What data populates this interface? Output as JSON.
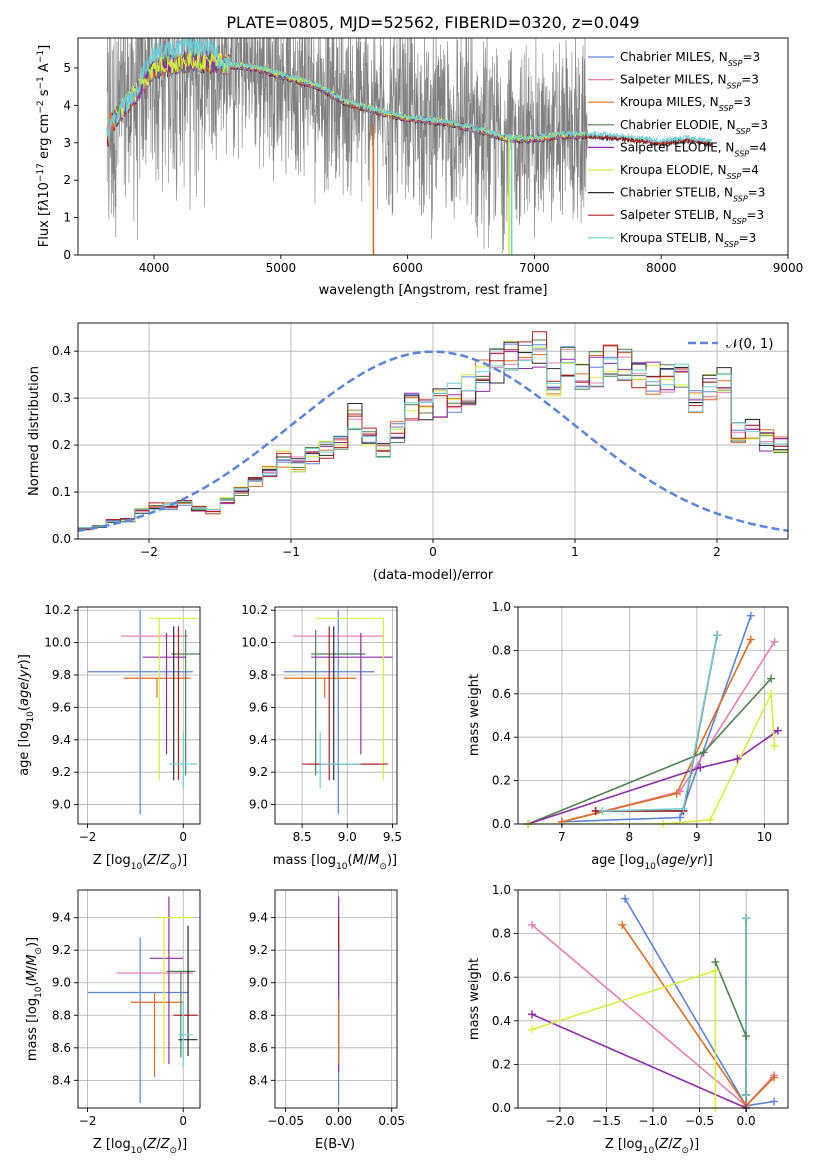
{
  "figure_title": "PLATE=0805, MJD=52562, FIBERID=0320, z=0.049",
  "colors": {
    "Chabrier MILES": "#5b85d9",
    "Salpeter MILES": "#e57fb3",
    "Kroupa MILES": "#dd6f22",
    "Chabrier ELODIE": "#4e8350",
    "Salpeter ELODIE": "#8e2bad",
    "Kroupa ELODIE": "#d6f03f",
    "Chabrier STELIB": "#2a2a2a",
    "Salpeter STELIB": "#b02020",
    "Kroupa STELIB": "#6ecfd6",
    "data": "#7f7f7f",
    "gaussian": "#5b85d9"
  },
  "legend": [
    {
      "name": "Chabrier MILES",
      "pre": "Chabrier MILES, N",
      "sub": "SSP",
      "post": "=3"
    },
    {
      "name": "Salpeter MILES",
      "pre": "Salpeter MILES, N",
      "sub": "SSP",
      "post": "=3"
    },
    {
      "name": "Kroupa MILES",
      "pre": "Kroupa MILES, N",
      "sub": "SSP",
      "post": "=3"
    },
    {
      "name": "Chabrier ELODIE",
      "pre": "Chabrier ELODIE, N",
      "sub": "SSP",
      "post": "=3"
    },
    {
      "name": "Salpeter ELODIE",
      "pre": "Salpeter ELODIE, N",
      "sub": "SSP",
      "post": "=4"
    },
    {
      "name": "Kroupa ELODIE",
      "pre": "Kroupa ELODIE, N",
      "sub": "SSP",
      "post": "=4"
    },
    {
      "name": "Chabrier STELIB",
      "pre": "Chabrier STELIB, N",
      "sub": "SSP",
      "post": "=3"
    },
    {
      "name": "Salpeter STELIB",
      "pre": "Salpeter STELIB, N",
      "sub": "SSP",
      "post": "=3"
    },
    {
      "name": "Kroupa STELIB",
      "pre": "Kroupa STELIB, N",
      "sub": "SSP",
      "post": "=3"
    }
  ],
  "chart_data": [
    {
      "id": "spectrum",
      "type": "line",
      "xlabel": "wavelength [Angstrom, rest frame]",
      "ylabel": "Flux [f_λ 10^-17 erg cm^-2 s^-1 A^-1]",
      "xlim": [
        3400,
        9000
      ],
      "ylim": [
        0,
        5.8
      ],
      "xticks": [
        4000,
        5000,
        6000,
        7000,
        8000,
        9000
      ],
      "yticks": [
        0,
        1,
        2,
        3,
        4,
        5
      ],
      "data_range": [
        3630,
        7420
      ],
      "continuum": [
        [
          3650,
          3.5
        ],
        [
          3900,
          4.5
        ],
        [
          4000,
          5.0
        ],
        [
          4300,
          5.2
        ],
        [
          4800,
          5.0
        ],
        [
          5000,
          4.8
        ],
        [
          5300,
          4.5
        ],
        [
          5500,
          4.1
        ],
        [
          5800,
          3.8
        ],
        [
          6000,
          3.65
        ],
        [
          6300,
          3.55
        ],
        [
          6600,
          3.3
        ],
        [
          6800,
          3.1
        ],
        [
          7000,
          3.1
        ],
        [
          7200,
          3.2
        ],
        [
          7420,
          3.2
        ]
      ],
      "model_extension": [
        [
          7420,
          3.2
        ],
        [
          7700,
          3.15
        ],
        [
          8000,
          3.0
        ],
        [
          8200,
          3.1
        ],
        [
          8400,
          3.0
        ]
      ],
      "grid": false
    },
    {
      "id": "residuals",
      "type": "histogram",
      "xlabel": "(data-model)/error",
      "ylabel": "Normed distribution",
      "xlim": [
        -2.5,
        2.5
      ],
      "ylim": [
        0,
        0.46
      ],
      "xticks": [
        -2,
        -1,
        0,
        1,
        2
      ],
      "yticks": [
        0.0,
        0.1,
        0.2,
        0.3,
        0.4
      ],
      "bin_width": 0.1,
      "reference": {
        "name": "𝒩(0, 1)",
        "mean": 0,
        "sigma": 1
      },
      "base_profile": [
        0.022,
        0.027,
        0.038,
        0.04,
        0.06,
        0.07,
        0.07,
        0.08,
        0.065,
        0.06,
        0.08,
        0.1,
        0.12,
        0.14,
        0.17,
        0.16,
        0.18,
        0.19,
        0.21,
        0.26,
        0.22,
        0.195,
        0.23,
        0.28,
        0.27,
        0.29,
        0.3,
        0.32,
        0.35,
        0.37,
        0.38,
        0.4,
        0.41,
        0.34,
        0.38,
        0.34,
        0.36,
        0.38,
        0.38,
        0.36,
        0.34,
        0.34,
        0.34,
        0.3,
        0.32,
        0.33,
        0.23,
        0.23,
        0.21,
        0.2,
        0.21,
        0.2,
        0.18,
        0.17,
        0.16,
        0.12,
        0.12,
        0.14,
        0.09,
        0.09,
        0.08,
        0.075,
        0.06,
        0.06,
        0.07,
        0.05,
        0.04,
        0.04,
        0.04,
        0.04
      ],
      "grid": true
    },
    {
      "id": "age-vs-z",
      "type": "errorbar",
      "xlabel": "Z [log10(Z/Z⊙)]",
      "ylabel": "age [log10(age/yr)]",
      "xlim": [
        -2.2,
        0.35
      ],
      "ylim": [
        8.88,
        10.22
      ],
      "xticks": [
        -2,
        0
      ],
      "yticks": [
        9.0,
        9.2,
        9.4,
        9.6,
        9.8,
        10.0,
        10.2
      ],
      "points": [
        {
          "series": "Chabrier MILES",
          "x": -0.9,
          "y": 9.82,
          "xerr": [
            1.1,
            1.1
          ],
          "yerr": [
            0.88,
            0.38
          ]
        },
        {
          "series": "Salpeter MILES",
          "x": -0.6,
          "y": 10.04,
          "xerr": [
            0.7,
            0.7
          ],
          "yerr": [
            0.0,
            0.0
          ]
        },
        {
          "series": "Kroupa MILES",
          "x": -0.55,
          "y": 9.78,
          "xerr": [
            0.7,
            0.7
          ],
          "yerr": [
            0.12,
            0.0
          ]
        },
        {
          "series": "Chabrier ELODIE",
          "x": 0.05,
          "y": 9.93,
          "xerr": [
            0.3,
            0.3
          ],
          "yerr": [
            0.75,
            0.15
          ]
        },
        {
          "series": "Salpeter ELODIE",
          "x": -0.35,
          "y": 9.91,
          "xerr": [
            0.5,
            0.4
          ],
          "yerr": [
            0.6,
            0.15
          ]
        },
        {
          "series": "Kroupa ELODIE",
          "x": -0.5,
          "y": 10.15,
          "xerr": [
            0.2,
            0.8
          ],
          "yerr": [
            1.0,
            0.0
          ]
        },
        {
          "series": "Chabrier STELIB",
          "x": -0.2,
          "y": 9.25,
          "xerr": [
            0.0,
            0.0
          ],
          "yerr": [
            0.1,
            0.85
          ]
        },
        {
          "series": "Salpeter STELIB",
          "x": -0.1,
          "y": 9.25,
          "xerr": [
            0.0,
            0.0
          ],
          "yerr": [
            0.1,
            0.85
          ]
        },
        {
          "series": "Kroupa STELIB",
          "x": 0.0,
          "y": 9.25,
          "xerr": [
            0.3,
            0.3
          ],
          "yerr": [
            0.15,
            0.2
          ]
        }
      ],
      "grid": true
    },
    {
      "id": "age-vs-mass",
      "type": "errorbar",
      "xlabel": "mass [log10(M/M⊙)]",
      "ylabel": "",
      "xlim": [
        8.2,
        9.55
      ],
      "ylim": [
        8.88,
        10.22
      ],
      "xticks": [
        8.5,
        9.0,
        9.5
      ],
      "yticks": [
        9.0,
        9.2,
        9.4,
        9.6,
        9.8,
        10.0,
        10.2
      ],
      "points": [
        {
          "series": "Chabrier MILES",
          "x": 8.9,
          "y": 9.82,
          "xerr": [
            0.6,
            0.4
          ],
          "yerr": [
            0.88,
            0.38
          ]
        },
        {
          "series": "Salpeter MILES",
          "x": 9.0,
          "y": 10.04,
          "xerr": [
            0.6,
            0.4
          ],
          "yerr": [
            0.0,
            0.0
          ]
        },
        {
          "series": "Kroupa MILES",
          "x": 8.75,
          "y": 9.78,
          "xerr": [
            0.45,
            0.35
          ],
          "yerr": [
            0.12,
            0.0
          ]
        },
        {
          "series": "Chabrier ELODIE",
          "x": 8.65,
          "y": 9.93,
          "xerr": [
            0.05,
            0.55
          ],
          "yerr": [
            0.75,
            0.15
          ]
        },
        {
          "series": "Salpeter ELODIE",
          "x": 9.15,
          "y": 9.91,
          "xerr": [
            0.55,
            0.35
          ],
          "yerr": [
            0.6,
            0.15
          ]
        },
        {
          "series": "Kroupa ELODIE",
          "x": 9.4,
          "y": 10.15,
          "xerr": [
            0.75,
            0.0
          ],
          "yerr": [
            1.0,
            0.0
          ]
        },
        {
          "series": "Chabrier STELIB",
          "x": 8.85,
          "y": 9.25,
          "xerr": [
            0.3,
            0.5
          ],
          "yerr": [
            0.1,
            0.85
          ]
        },
        {
          "series": "Salpeter STELIB",
          "x": 8.8,
          "y": 9.25,
          "xerr": [
            0.3,
            0.65
          ],
          "yerr": [
            0.1,
            0.85
          ]
        },
        {
          "series": "Kroupa STELIB",
          "x": 8.7,
          "y": 9.25,
          "xerr": [
            0.0,
            0.45
          ],
          "yerr": [
            0.15,
            0.2
          ]
        }
      ],
      "grid": true
    },
    {
      "id": "weight-vs-age",
      "type": "line",
      "xlabel": "age [log10(age/yr)]",
      "ylabel": "mass weight",
      "xlim": [
        6.35,
        10.35
      ],
      "ylim": [
        0.0,
        1.0
      ],
      "xticks": [
        7,
        8,
        9,
        10
      ],
      "yticks": [
        0.0,
        0.2,
        0.4,
        0.6,
        0.8,
        1.0
      ],
      "series": [
        {
          "name": "Chabrier MILES",
          "points": [
            [
              7.0,
              0.01
            ],
            [
              8.75,
              0.03
            ],
            [
              9.8,
              0.96
            ]
          ]
        },
        {
          "name": "Salpeter MILES",
          "points": [
            [
              7.0,
              0.01
            ],
            [
              8.75,
              0.15
            ],
            [
              10.15,
              0.84
            ]
          ]
        },
        {
          "name": "Kroupa MILES",
          "points": [
            [
              7.0,
              0.01
            ],
            [
              8.7,
              0.14
            ],
            [
              9.8,
              0.85
            ]
          ]
        },
        {
          "name": "Chabrier ELODIE",
          "points": [
            [
              6.5,
              0.0
            ],
            [
              9.1,
              0.33
            ],
            [
              10.1,
              0.67
            ]
          ]
        },
        {
          "name": "Salpeter ELODIE",
          "points": [
            [
              6.5,
              0.0
            ],
            [
              9.05,
              0.26
            ],
            [
              9.6,
              0.3
            ],
            [
              10.2,
              0.43
            ]
          ]
        },
        {
          "name": "Kroupa ELODIE",
          "points": [
            [
              6.5,
              0.0
            ],
            [
              8.5,
              0.0
            ],
            [
              9.2,
              0.02
            ],
            [
              10.1,
              0.6
            ],
            [
              10.15,
              0.36
            ]
          ]
        },
        {
          "name": "Chabrier STELIB",
          "points": [
            [
              7.5,
              0.06
            ],
            [
              8.8,
              0.06
            ],
            [
              9.3,
              0.87
            ]
          ]
        },
        {
          "name": "Salpeter STELIB",
          "points": [
            [
              7.5,
              0.06
            ],
            [
              8.8,
              0.06
            ],
            [
              9.3,
              0.87
            ]
          ]
        },
        {
          "name": "Kroupa STELIB",
          "points": [
            [
              7.6,
              0.06
            ],
            [
              8.8,
              0.07
            ],
            [
              9.3,
              0.87
            ]
          ]
        }
      ],
      "grid": true
    },
    {
      "id": "mass-vs-z",
      "type": "errorbar",
      "xlabel": "Z [log10(Z/Z⊙)]",
      "ylabel": "mass [log10(M/M⊙)]",
      "xlim": [
        -2.2,
        0.35
      ],
      "ylim": [
        8.23,
        9.57
      ],
      "xticks": [
        -2,
        0
      ],
      "yticks": [
        8.4,
        8.6,
        8.8,
        9.0,
        9.2,
        9.4
      ],
      "points": [
        {
          "series": "Chabrier MILES",
          "x": -0.9,
          "y": 8.94,
          "xerr": [
            1.1,
            1.0
          ],
          "yerr": [
            0.68,
            0.34
          ]
        },
        {
          "series": "Salpeter MILES",
          "x": -0.6,
          "y": 9.06,
          "xerr": [
            0.8,
            0.8
          ],
          "yerr": [
            0.0,
            0.0
          ]
        },
        {
          "series": "Kroupa MILES",
          "x": -0.6,
          "y": 8.88,
          "xerr": [
            0.5,
            0.6
          ],
          "yerr": [
            0.46,
            0.06
          ]
        },
        {
          "series": "Chabrier ELODIE",
          "x": -0.05,
          "y": 9.07,
          "xerr": [
            0.3,
            0.3
          ],
          "yerr": [
            0.53,
            0.0
          ]
        },
        {
          "series": "Salpeter ELODIE",
          "x": -0.3,
          "y": 9.15,
          "xerr": [
            0.4,
            0.3
          ],
          "yerr": [
            0.65,
            0.38
          ]
        },
        {
          "series": "Kroupa ELODIE",
          "x": -0.4,
          "y": 9.4,
          "xerr": [
            0.15,
            0.6
          ],
          "yerr": [
            0.9,
            0.0
          ]
        },
        {
          "series": "Chabrier STELIB",
          "x": 0.1,
          "y": 8.65,
          "xerr": [
            0.2,
            0.2
          ],
          "yerr": [
            0.1,
            0.7
          ]
        },
        {
          "series": "Salpeter STELIB",
          "x": 0.1,
          "y": 8.8,
          "xerr": [
            0.3,
            0.2
          ],
          "yerr": [
            0.0,
            0.0
          ]
        },
        {
          "series": "Kroupa STELIB",
          "x": 0.0,
          "y": 8.68,
          "xerr": [
            0.1,
            0.2
          ],
          "yerr": [
            0.2,
            0.2
          ]
        }
      ],
      "grid": true
    },
    {
      "id": "mass-vs-ebv",
      "type": "errorbar",
      "xlabel": "E(B-V)",
      "ylabel": "",
      "xlim": [
        -0.06,
        0.055
      ],
      "ylim": [
        8.23,
        9.57
      ],
      "xticks": [
        -0.05,
        0.0,
        0.05
      ],
      "yticks": [
        8.4,
        8.6,
        8.8,
        9.0,
        9.2,
        9.4
      ],
      "points": [
        {
          "series": "Chabrier MILES",
          "x": 0.0,
          "y": 8.9,
          "xerr": [
            0,
            0
          ],
          "yerr": [
            0.65,
            0.5
          ]
        },
        {
          "series": "Salpeter ELODIE",
          "x": 0.0,
          "y": 9.15,
          "xerr": [
            0,
            0
          ],
          "yerr": [
            0.7,
            0.38
          ]
        },
        {
          "series": "Kroupa MILES",
          "x": 0.0,
          "y": 8.9,
          "xerr": [
            0,
            0
          ],
          "yerr": [
            0.4,
            0.0
          ]
        },
        {
          "series": "Salpeter STELIB",
          "x": 0.0,
          "y": 9.3,
          "xerr": [
            0,
            0
          ],
          "yerr": [
            0.1,
            0.1
          ]
        }
      ],
      "grid": true
    },
    {
      "id": "weight-vs-z",
      "type": "line",
      "xlabel": "Z [log10(Z/Z⊙)]",
      "ylabel": "mass weight",
      "xlim": [
        -2.45,
        0.45
      ],
      "ylim": [
        0.0,
        1.0
      ],
      "xticks": [
        -2.0,
        -1.5,
        -1.0,
        -0.5,
        0.0
      ],
      "yticks": [
        0.0,
        0.2,
        0.4,
        0.6,
        0.8,
        1.0
      ],
      "series": [
        {
          "name": "Chabrier MILES",
          "points": [
            [
              -1.3,
              0.96
            ],
            [
              0.0,
              0.01
            ],
            [
              0.3,
              0.03
            ]
          ]
        },
        {
          "name": "Salpeter MILES",
          "points": [
            [
              -2.3,
              0.84
            ],
            [
              0.0,
              0.01
            ],
            [
              0.3,
              0.15
            ]
          ]
        },
        {
          "name": "Kroupa MILES",
          "points": [
            [
              -1.33,
              0.84
            ],
            [
              0.0,
              0.01
            ],
            [
              0.3,
              0.14
            ]
          ]
        },
        {
          "name": "Chabrier ELODIE",
          "points": [
            [
              -0.33,
              0.67
            ],
            [
              0.0,
              0.33
            ],
            [
              0.0,
              0.0
            ]
          ]
        },
        {
          "name": "Salpeter ELODIE",
          "points": [
            [
              -2.3,
              0.43
            ],
            [
              0.0,
              0.0
            ]
          ]
        },
        {
          "name": "Kroupa ELODIE",
          "points": [
            [
              -2.3,
              0.36
            ],
            [
              -0.33,
              0.63
            ],
            [
              -0.33,
              0.0
            ]
          ]
        },
        {
          "name": "Chabrier STELIB",
          "points": [
            [
              0.0,
              0.87
            ],
            [
              0.0,
              0.06
            ]
          ]
        },
        {
          "name": "Salpeter STELIB",
          "points": [
            [
              0.0,
              0.87
            ],
            [
              0.0,
              0.06
            ]
          ]
        },
        {
          "name": "Kroupa STELIB",
          "points": [
            [
              0.0,
              0.87
            ],
            [
              0.0,
              0.06
            ]
          ]
        }
      ],
      "grid": true
    }
  ]
}
